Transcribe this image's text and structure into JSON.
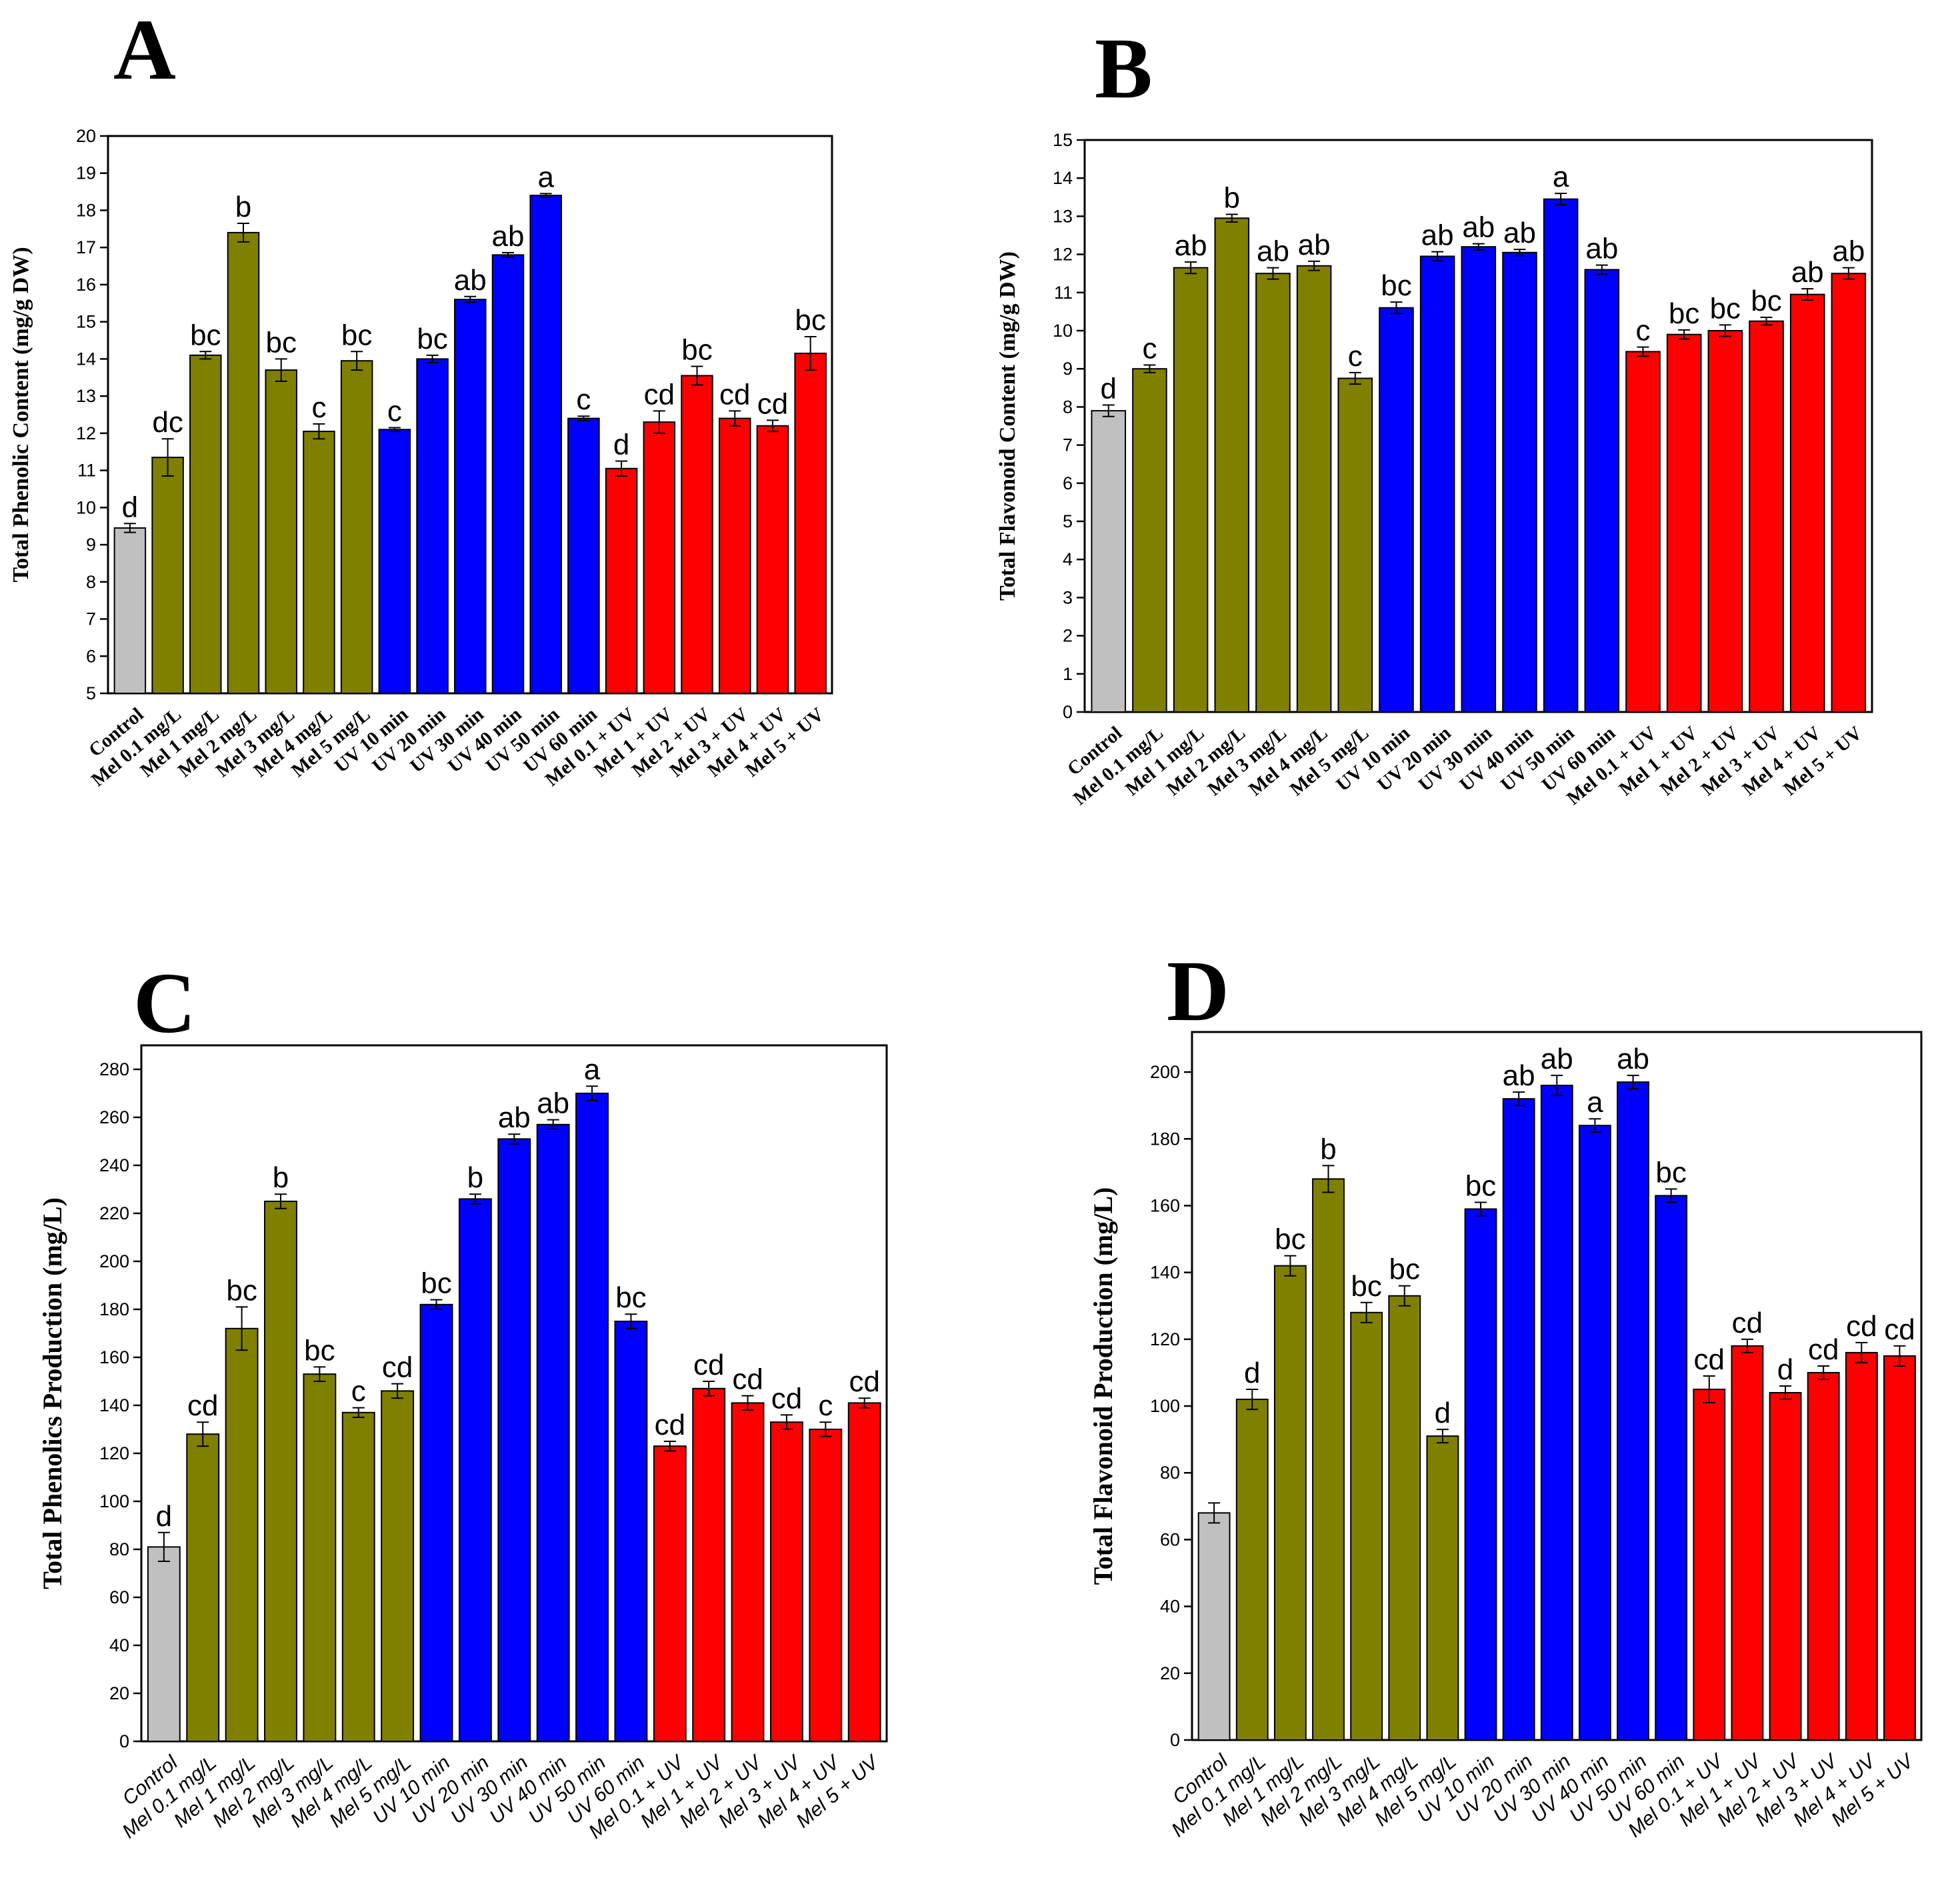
{
  "colors": {
    "control": "#c0c0c0",
    "mel": "#808000",
    "uv": "#0000ff",
    "mel_uv": "#ff0000"
  },
  "chart_data": [
    {
      "panel": "A",
      "type": "bar",
      "ylabel": "Total Phenolic Content (mg/g DW)",
      "ylim": [
        5,
        20
      ],
      "yticks": [
        5,
        6,
        7,
        8,
        9,
        10,
        11,
        12,
        13,
        14,
        15,
        16,
        17,
        18,
        19,
        20
      ],
      "categories": [
        "Control",
        "Mel 0.1 mg/L",
        "Mel 1 mg/L",
        "Mel 2 mg/L",
        "Mel 3 mg/L",
        "Mel 4 mg/L",
        "Mel 5 mg/L",
        "UV 10 min",
        "UV 20 min",
        "UV 30 min",
        "UV 40 min",
        "UV 50 min",
        "UV 60 min",
        "Mel 0.1 + UV",
        "Mel 1 + UV",
        "Mel 2 + UV",
        "Mel 3 + UV",
        "Mel 4 + UV",
        "Mel 5 + UV"
      ],
      "values": [
        9.45,
        11.35,
        14.1,
        17.4,
        13.7,
        12.05,
        13.95,
        12.1,
        14.0,
        15.6,
        16.8,
        18.4,
        12.4,
        11.05,
        12.3,
        13.55,
        12.4,
        12.2,
        14.15
      ],
      "errors": [
        0.12,
        0.5,
        0.1,
        0.25,
        0.3,
        0.2,
        0.25,
        0.05,
        0.1,
        0.08,
        0.06,
        0.05,
        0.06,
        0.2,
        0.3,
        0.25,
        0.2,
        0.15,
        0.45
      ],
      "letters": [
        "d",
        "dc",
        "bc",
        "b",
        "bc",
        "c",
        "bc",
        "c",
        "bc",
        "ab",
        "ab",
        "a",
        "c",
        "d",
        "cd",
        "bc",
        "cd",
        "cd",
        "bc"
      ],
      "groups": [
        "control",
        "mel",
        "mel",
        "mel",
        "mel",
        "mel",
        "mel",
        "uv",
        "uv",
        "uv",
        "uv",
        "uv",
        "uv",
        "mel_uv",
        "mel_uv",
        "mel_uv",
        "mel_uv",
        "mel_uv",
        "mel_uv"
      ]
    },
    {
      "panel": "B",
      "type": "bar",
      "ylabel": "Total Flavonoid Content (mg/g DW)",
      "ylim": [
        0,
        15
      ],
      "yticks": [
        0,
        1,
        2,
        3,
        4,
        5,
        6,
        7,
        8,
        9,
        10,
        11,
        12,
        13,
        14,
        15
      ],
      "categories": [
        "Control",
        "Mel 0.1 mg/L",
        "Mel 1 mg/L",
        "Mel 2 mg/L",
        "Mel 3 mg/L",
        "Mel 4 mg/L",
        "Mel 5 mg/L",
        "UV 10 min",
        "UV 20 min",
        "UV 30 min",
        "UV 40 min",
        "UV 50 min",
        "UV 60 min",
        "Mel 0.1 + UV",
        "Mel 1 + UV",
        "Mel 2 + UV",
        "Mel 3 + UV",
        "Mel 4 + UV",
        "Mel 5 + UV"
      ],
      "values": [
        7.9,
        9.0,
        11.65,
        12.95,
        11.5,
        11.7,
        8.75,
        10.6,
        11.95,
        12.2,
        12.05,
        13.45,
        11.6,
        9.45,
        9.9,
        10.0,
        10.25,
        10.95,
        11.5
      ],
      "errors": [
        0.15,
        0.1,
        0.15,
        0.1,
        0.15,
        0.12,
        0.15,
        0.15,
        0.12,
        0.08,
        0.08,
        0.15,
        0.12,
        0.12,
        0.12,
        0.15,
        0.1,
        0.15,
        0.15
      ],
      "letters": [
        "d",
        "c",
        "ab",
        "b",
        "ab",
        "ab",
        "c",
        "bc",
        "ab",
        "ab",
        "ab",
        "a",
        "ab",
        "c",
        "bc",
        "bc",
        "bc",
        "ab",
        "ab"
      ],
      "groups": [
        "control",
        "mel",
        "mel",
        "mel",
        "mel",
        "mel",
        "mel",
        "uv",
        "uv",
        "uv",
        "uv",
        "uv",
        "uv",
        "mel_uv",
        "mel_uv",
        "mel_uv",
        "mel_uv",
        "mel_uv",
        "mel_uv"
      ]
    },
    {
      "panel": "C",
      "type": "bar",
      "ylabel": "Total Phenolics Production (mg/L)",
      "ylim": [
        0,
        290
      ],
      "yticks": [
        0,
        20,
        40,
        60,
        80,
        100,
        120,
        140,
        160,
        180,
        200,
        220,
        240,
        260,
        280
      ],
      "categories": [
        "Control",
        "Mel 0.1 mg/L",
        "Mel 1 mg/L",
        "Mel 2 mg/L",
        "Mel 3 mg/L",
        "Mel 4 mg/L",
        "Mel 5 mg/L",
        "UV 10 min",
        "UV 20 min",
        "UV 30 min",
        "UV 40 min",
        "UV 50 min",
        "UV 60 min",
        "Mel 0.1 + UV",
        "Mel 1 + UV",
        "Mel 2 + UV",
        "Mel 3 + UV",
        "Mel 4 + UV",
        "Mel 5 + UV"
      ],
      "values": [
        81,
        128,
        172,
        225,
        153,
        137,
        146,
        182,
        226,
        251,
        257,
        270,
        175,
        123,
        147,
        141,
        133,
        130,
        141
      ],
      "errors": [
        6,
        5,
        9,
        3,
        3,
        2,
        3,
        2,
        2,
        2,
        2,
        3,
        3,
        2,
        3,
        3,
        3,
        3,
        2
      ],
      "letters": [
        "d",
        "cd",
        "bc",
        "b",
        "bc",
        "c",
        "cd",
        "bc",
        "b",
        "ab",
        "ab",
        "a",
        "bc",
        "cd",
        "cd",
        "cd",
        "cd",
        "c",
        "cd"
      ],
      "groups": [
        "control",
        "mel",
        "mel",
        "mel",
        "mel",
        "mel",
        "mel",
        "uv",
        "uv",
        "uv",
        "uv",
        "uv",
        "uv",
        "mel_uv",
        "mel_uv",
        "mel_uv",
        "mel_uv",
        "mel_uv",
        "mel_uv"
      ]
    },
    {
      "panel": "D",
      "type": "bar",
      "ylabel": "Total Flavonoid Production (mg/L)",
      "ylim": [
        0,
        212
      ],
      "yticks": [
        0,
        20,
        40,
        60,
        80,
        100,
        120,
        140,
        160,
        180,
        200
      ],
      "categories": [
        "Control",
        "Mel 0.1 mg/L",
        "Mel 1 mg/L",
        "Mel 2 mg/L",
        "Mel 3 mg/L",
        "Mel 4 mg/L",
        "Mel 5 mg/L",
        "UV 10 min",
        "UV 20 min",
        "UV 30 min",
        "UV 40 min",
        "UV 50 min",
        "UV 60 min",
        "Mel 0.1 + UV",
        "Mel 1 + UV",
        "Mel 2 + UV",
        "Mel 3 + UV",
        "Mel 4 + UV",
        "Mel 5 + UV"
      ],
      "values": [
        68,
        102,
        142,
        168,
        128,
        133,
        91,
        159,
        192,
        196,
        184,
        197,
        163,
        105,
        118,
        104,
        110,
        116,
        115
      ],
      "errors": [
        3,
        3,
        3,
        4,
        3,
        3,
        2,
        2,
        2,
        3,
        2,
        2,
        2,
        4,
        2,
        2,
        2,
        3,
        3
      ],
      "letters": [
        "",
        "d",
        "bc",
        "b",
        "bc",
        "bc",
        "d",
        "bc",
        "ab",
        "ab",
        "a",
        "ab",
        "bc",
        "cd",
        "cd",
        "d",
        "cd",
        "cd",
        "cd"
      ],
      "groups": [
        "control",
        "mel",
        "mel",
        "mel",
        "mel",
        "mel",
        "mel",
        "uv",
        "uv",
        "uv",
        "uv",
        "uv",
        "uv",
        "mel_uv",
        "mel_uv",
        "mel_uv",
        "mel_uv",
        "mel_uv",
        "mel_uv"
      ]
    }
  ]
}
